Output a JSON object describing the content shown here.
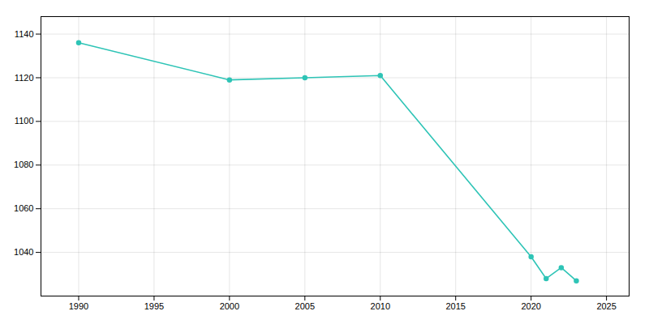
{
  "chart_data": {
    "type": "line",
    "x": [
      1990,
      2000,
      2005,
      2010,
      2020,
      2021,
      2022,
      2023
    ],
    "values": [
      1136,
      1119,
      1120,
      1121,
      1038,
      1028,
      1033,
      1027
    ],
    "color": "#2EC4B6",
    "marker": "circle",
    "xlim": [
      1987.5,
      2026.5
    ],
    "ylim": [
      1020,
      1148
    ],
    "xticks": [
      1990,
      1995,
      2000,
      2005,
      2010,
      2015,
      2020,
      2025
    ],
    "yticks": [
      1040,
      1060,
      1080,
      1100,
      1120,
      1140
    ],
    "grid": true
  }
}
